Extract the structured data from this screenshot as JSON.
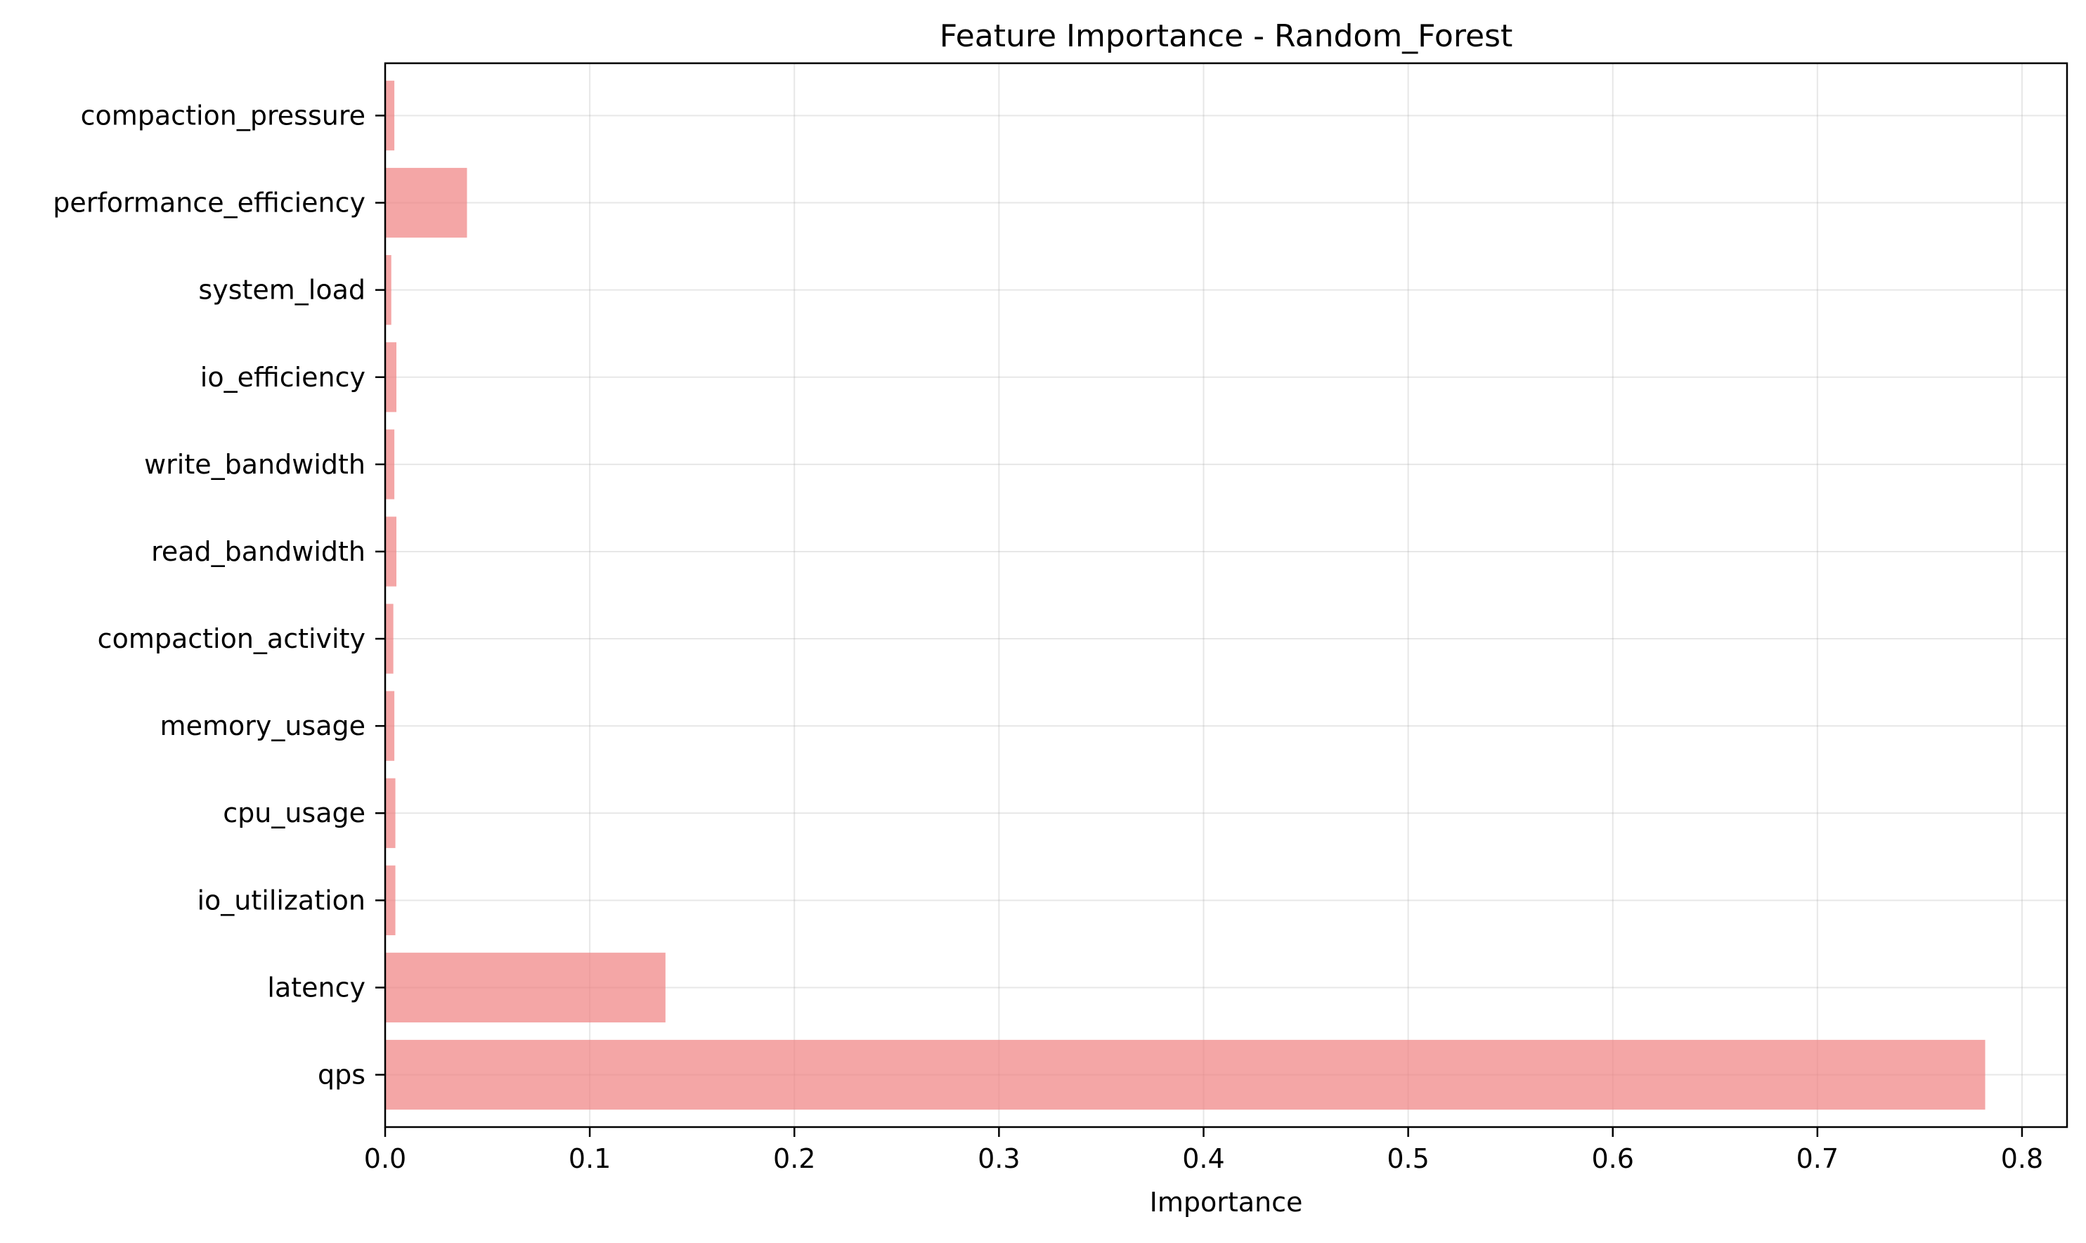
{
  "chart_data": {
    "type": "bar",
    "orientation": "horizontal",
    "title": "Feature Importance - Random_Forest",
    "xlabel": "Importance",
    "ylabel": "",
    "xlim": [
      0,
      0.822
    ],
    "xticks": [
      0.0,
      0.1,
      0.2,
      0.3,
      0.4,
      0.5,
      0.6,
      0.7,
      0.8
    ],
    "xtick_labels": [
      "0.0",
      "0.1",
      "0.2",
      "0.3",
      "0.4",
      "0.5",
      "0.6",
      "0.7",
      "0.8"
    ],
    "grid": true,
    "bar_color": "#f08080",
    "categories": [
      "qps",
      "latency",
      "io_utilization",
      "cpu_usage",
      "memory_usage",
      "compaction_activity",
      "read_bandwidth",
      "write_bandwidth",
      "io_efficiency",
      "system_load",
      "performance_efficiency",
      "compaction_pressure"
    ],
    "values": [
      0.782,
      0.137,
      0.005,
      0.005,
      0.0045,
      0.004,
      0.0055,
      0.0045,
      0.0055,
      0.003,
      0.04,
      0.0045
    ]
  }
}
